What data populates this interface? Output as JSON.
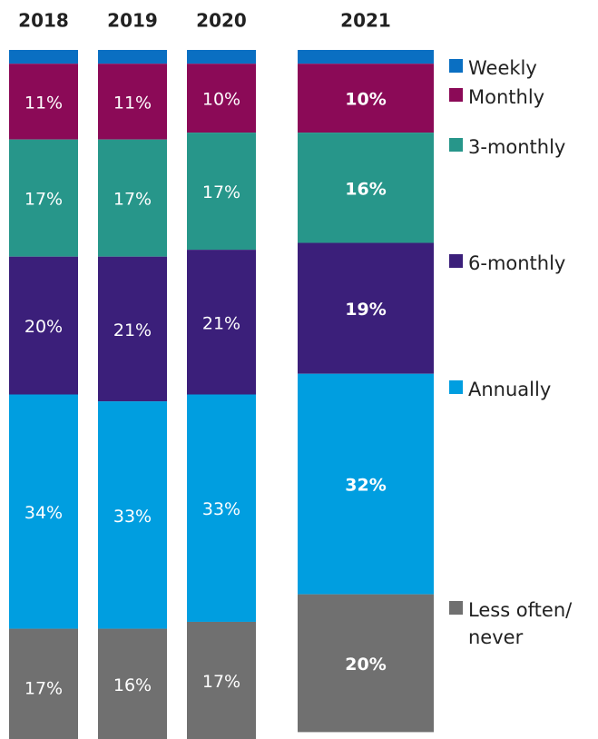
{
  "chart_data": {
    "type": "stacked_bar",
    "categories": [
      "2018",
      "2019",
      "2020",
      "2021"
    ],
    "ylim": [
      0,
      100
    ],
    "series": [
      {
        "name": "Weekly",
        "color": "#0a6fc2",
        "values": [
          2,
          2,
          2,
          2
        ],
        "value_labels": [
          null,
          null,
          null,
          null
        ]
      },
      {
        "name": "Monthly",
        "color": "#8b0a57",
        "values": [
          11,
          11,
          10,
          10
        ],
        "value_labels": [
          "11%",
          "11%",
          "10%",
          "10%"
        ]
      },
      {
        "name": "3-monthly",
        "color": "#27968a",
        "values": [
          17,
          17,
          17,
          16
        ],
        "value_labels": [
          "17%",
          "17%",
          "17%",
          "16%"
        ]
      },
      {
        "name": "6-monthly",
        "color": "#3b1f7a",
        "values": [
          20,
          21,
          21,
          19
        ],
        "value_labels": [
          "20%",
          "21%",
          "21%",
          "19%"
        ]
      },
      {
        "name": "Annually",
        "color": "#009ee0",
        "values": [
          34,
          33,
          33,
          32
        ],
        "value_labels": [
          "34%",
          "33%",
          "33%",
          "32%"
        ]
      },
      {
        "name": "Less often/ never",
        "color": "#707070",
        "values": [
          17,
          16,
          17,
          20
        ],
        "value_labels": [
          "17%",
          "16%",
          "17%",
          "20%"
        ]
      }
    ]
  }
}
